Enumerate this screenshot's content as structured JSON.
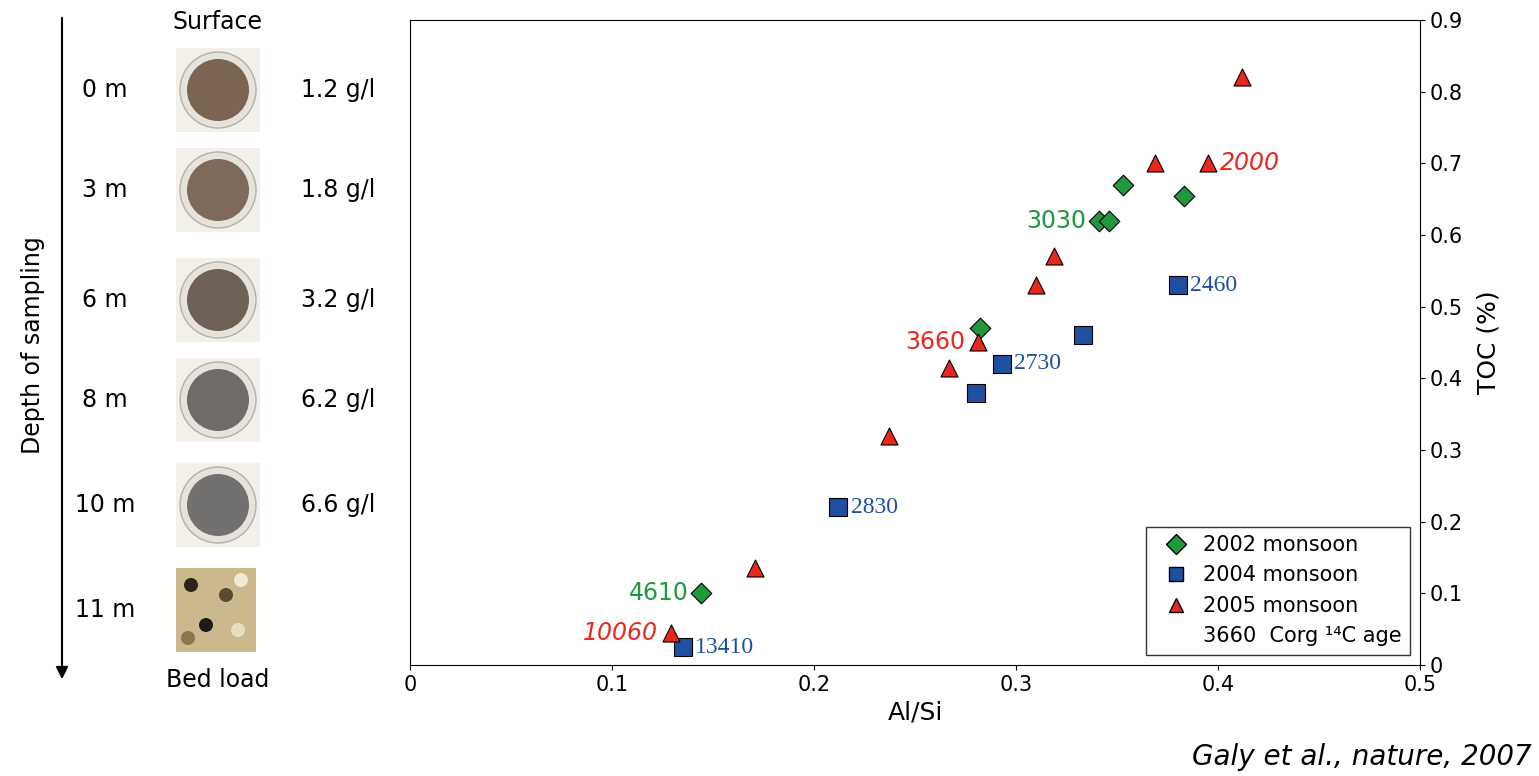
{
  "chart_data": {
    "type": "scatter",
    "xlabel": "Al/Si",
    "ylabel": "TOC (%)",
    "xlim": [
      0,
      0.5
    ],
    "xticks": [
      0,
      0.1,
      0.2,
      0.3,
      0.4,
      0.5
    ],
    "ylim": [
      0,
      0.9
    ],
    "yticks": [
      0,
      0.1,
      0.2,
      0.3,
      0.4,
      0.5,
      0.6,
      0.7,
      0.8,
      0.9
    ],
    "legend": "lower right",
    "legend_note": "3660  Corg ¹⁴C age",
    "series": [
      {
        "name": "2002 monsoon",
        "color": "#1e9a3c",
        "marker": "diamond",
        "x": [
          0.353,
          0.383,
          0.341,
          0.346,
          0.282,
          0.144
        ],
        "values": [
          0.67,
          0.655,
          0.62,
          0.62,
          0.47,
          0.1
        ],
        "labels": [
          null,
          null,
          "3030",
          null,
          null,
          "4610"
        ]
      },
      {
        "name": "2004 monsoon",
        "color": "#1f4fa0",
        "marker": "square",
        "x": [
          0.38,
          0.333,
          0.293,
          0.28,
          0.212,
          0.135
        ],
        "values": [
          0.53,
          0.46,
          0.42,
          0.38,
          0.22,
          0.025
        ],
        "labels": [
          "2460",
          null,
          "2730",
          null,
          "2830",
          "13410"
        ]
      },
      {
        "name": "2005 monsoon",
        "color": "#e8281e",
        "marker": "triangle",
        "x": [
          0.412,
          0.369,
          0.395,
          0.319,
          0.31,
          0.281,
          0.267,
          0.237,
          0.171,
          0.129
        ],
        "values": [
          0.82,
          0.7,
          0.7,
          0.57,
          0.53,
          0.45,
          0.415,
          0.32,
          0.135,
          0.045
        ],
        "labels": [
          null,
          null,
          "2000",
          null,
          null,
          "3660",
          null,
          null,
          null,
          "10060"
        ]
      }
    ]
  },
  "sampling_profile": {
    "axis_label": "Depth of sampling",
    "top": "Surface",
    "bottom": "Bed load",
    "samples": [
      {
        "depth": "0 m",
        "concentration": "1.2 g/l"
      },
      {
        "depth": "3 m",
        "concentration": "1.8 g/l"
      },
      {
        "depth": "6 m",
        "concentration": "3.2 g/l"
      },
      {
        "depth": "8 m",
        "concentration": "6.2 g/l"
      },
      {
        "depth": "10 m",
        "concentration": "6.6 g/l"
      },
      {
        "depth": "11 m"
      }
    ]
  },
  "source": "Galy et al., nature, 2007"
}
